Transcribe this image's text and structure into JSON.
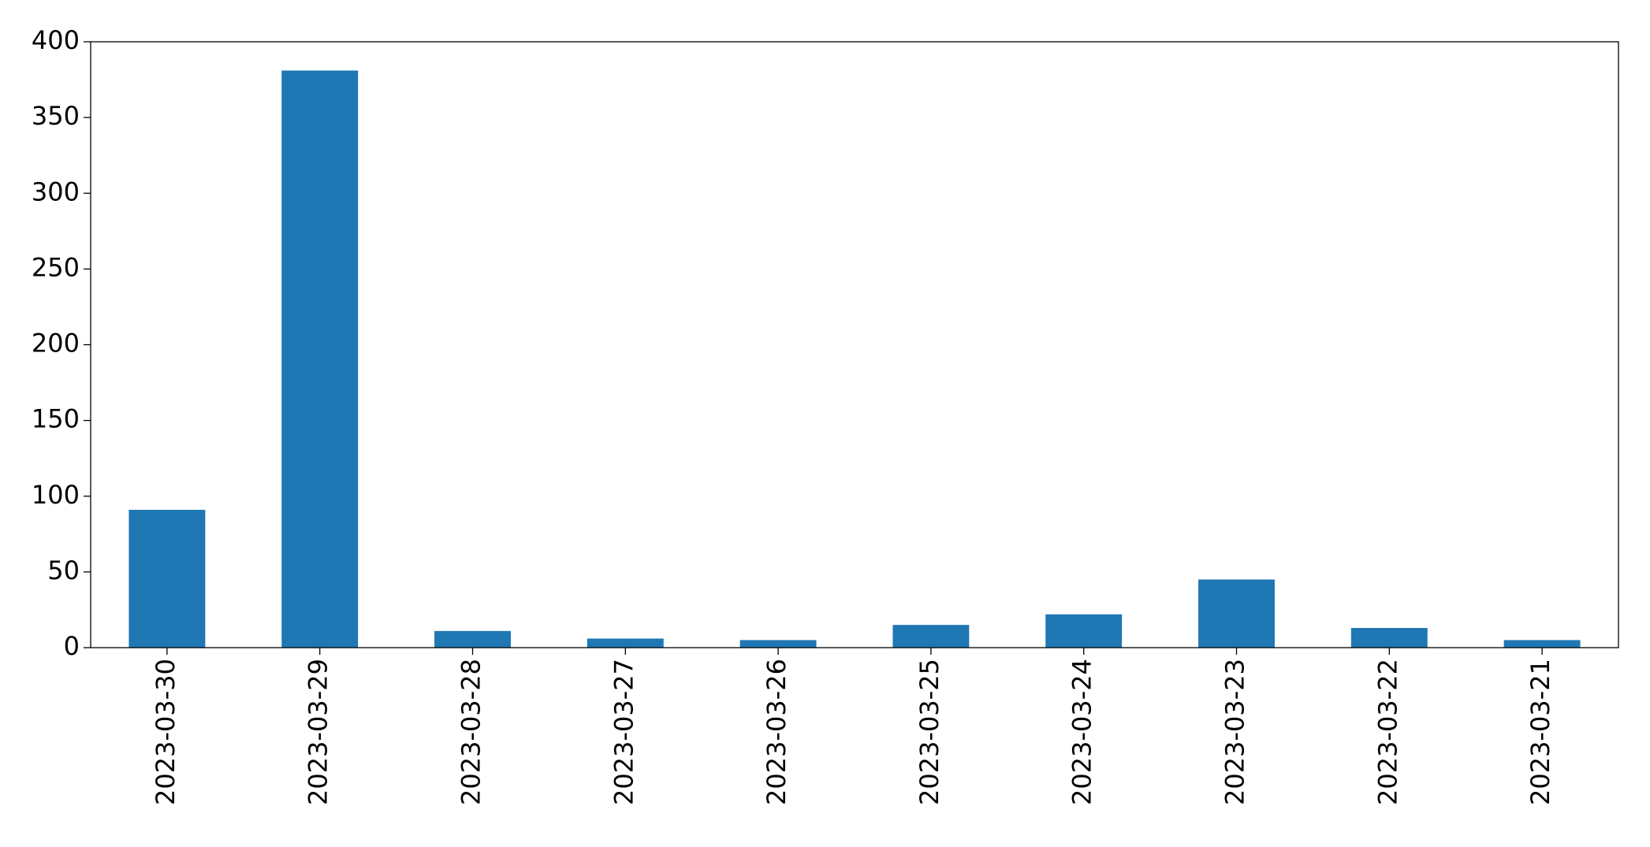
{
  "chart_data": {
    "type": "bar",
    "categories": [
      "2023-03-30",
      "2023-03-29",
      "2023-03-28",
      "2023-03-27",
      "2023-03-26",
      "2023-03-25",
      "2023-03-24",
      "2023-03-23",
      "2023-03-22",
      "2023-03-21"
    ],
    "values": [
      91,
      381,
      11,
      6,
      5,
      15,
      22,
      45,
      13,
      5
    ],
    "color": "#1f77b4",
    "ylim": [
      0,
      400
    ],
    "yticks": [
      0,
      50,
      100,
      150,
      200,
      250,
      300,
      350,
      400
    ],
    "grid": false
  }
}
